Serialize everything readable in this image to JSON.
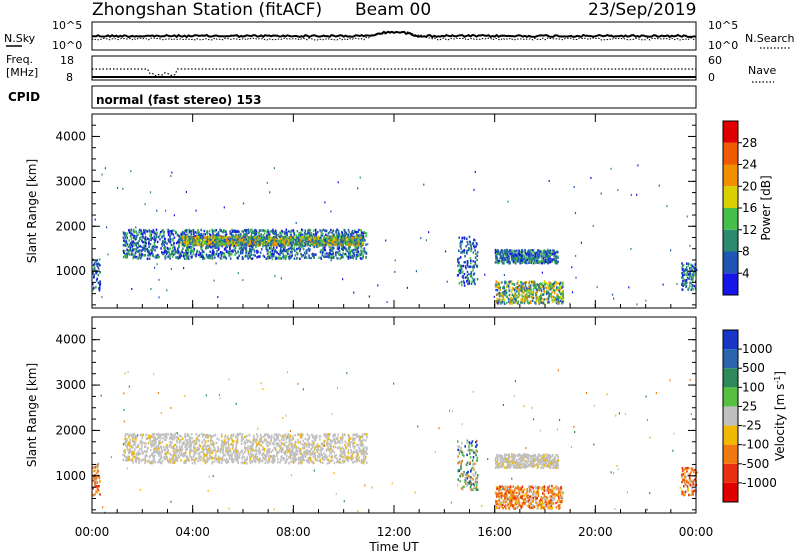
{
  "header": {
    "station": "Zhongshan Station (fitACF)",
    "beam": "Beam 00",
    "date": "23/Sep/2019"
  },
  "sky_panel": {
    "left_label": "N.Sky",
    "right_label": "N.Search",
    "left_ticks": [
      "10^5",
      "10^0"
    ],
    "right_ticks": [
      "10^5",
      "10^0"
    ]
  },
  "freq_panel": {
    "left_label_line1": "Freq.",
    "left_label_line2": "[MHz]",
    "right_label": "Nave",
    "left_ticks": [
      "18",
      "8"
    ],
    "right_ticks": [
      "60",
      "0"
    ]
  },
  "cpid": {
    "label": "CPID",
    "text": "normal (fast stereo) 153"
  },
  "chart_data": [
    {
      "type": "heatmap",
      "name": "Power",
      "ylabel": "Slant Range [km]",
      "ylim": [
        180,
        4500
      ],
      "yticks": [
        "1000",
        "2000",
        "3000",
        "4000"
      ],
      "colorbar_label": "Power [dB]",
      "colorbar_ticks": [
        "4",
        "8",
        "12",
        "16",
        "20",
        "24",
        "28"
      ],
      "colorbar_colors": [
        "#1515e8",
        "#1e56b4",
        "#2e8a6e",
        "#44bf4a",
        "#d8d000",
        "#f09000",
        "#f05a00",
        "#e00000"
      ],
      "regions": [
        {
          "t": [
            1.2,
            10.9
          ],
          "r": [
            1300,
            1950
          ],
          "intensity": "mid"
        },
        {
          "t": [
            3.5,
            10.8
          ],
          "r": [
            1600,
            1800
          ],
          "intensity": "high"
        },
        {
          "t": [
            14.5,
            15.3
          ],
          "r": [
            700,
            1800
          ],
          "intensity": "mid"
        },
        {
          "t": [
            16.0,
            18.5
          ],
          "r": [
            1200,
            1500
          ],
          "intensity": "mid"
        },
        {
          "t": [
            16.0,
            18.7
          ],
          "r": [
            300,
            800
          ],
          "intensity": "high"
        },
        {
          "t": [
            0.0,
            0.3
          ],
          "r": [
            600,
            1300
          ],
          "intensity": "mid"
        },
        {
          "t": [
            23.4,
            24.0
          ],
          "r": [
            600,
            1200
          ],
          "intensity": "mid"
        }
      ]
    },
    {
      "type": "heatmap",
      "name": "Velocity",
      "ylabel": "Slant Range [km]",
      "ylim": [
        180,
        4500
      ],
      "yticks": [
        "1000",
        "2000",
        "3000",
        "4000"
      ],
      "colorbar_label": "Velocity [m s",
      "colorbar_label_sup": "-1",
      "colorbar_label_end": "]",
      "colorbar_ticks": [
        "1000",
        "500",
        "100",
        "25",
        "-25",
        "-100",
        "-500",
        "-1000"
      ],
      "colorbar_colors": [
        "#1a36c8",
        "#2a66b0",
        "#2e8a5a",
        "#56c040",
        "#c0c0c0",
        "#f0b800",
        "#f07a10",
        "#e83010",
        "#e00000"
      ],
      "regions": [
        {
          "t": [
            1.2,
            10.9
          ],
          "r": [
            1300,
            1950
          ],
          "intensity": "ground"
        },
        {
          "t": [
            14.5,
            15.3
          ],
          "r": [
            700,
            1800
          ],
          "intensity": "mixed"
        },
        {
          "t": [
            16.0,
            18.5
          ],
          "r": [
            1200,
            1500
          ],
          "intensity": "ground"
        },
        {
          "t": [
            16.0,
            18.7
          ],
          "r": [
            300,
            800
          ],
          "intensity": "negative"
        },
        {
          "t": [
            0.0,
            0.3
          ],
          "r": [
            600,
            1300
          ],
          "intensity": "negative"
        },
        {
          "t": [
            23.4,
            24.0
          ],
          "r": [
            600,
            1200
          ],
          "intensity": "negative"
        }
      ]
    }
  ],
  "x_axis": {
    "ticks": [
      "00:00",
      "04:00",
      "08:00",
      "12:00",
      "16:00",
      "20:00",
      "00:00"
    ],
    "label": "Time UT",
    "range_hours": [
      0,
      24
    ]
  }
}
